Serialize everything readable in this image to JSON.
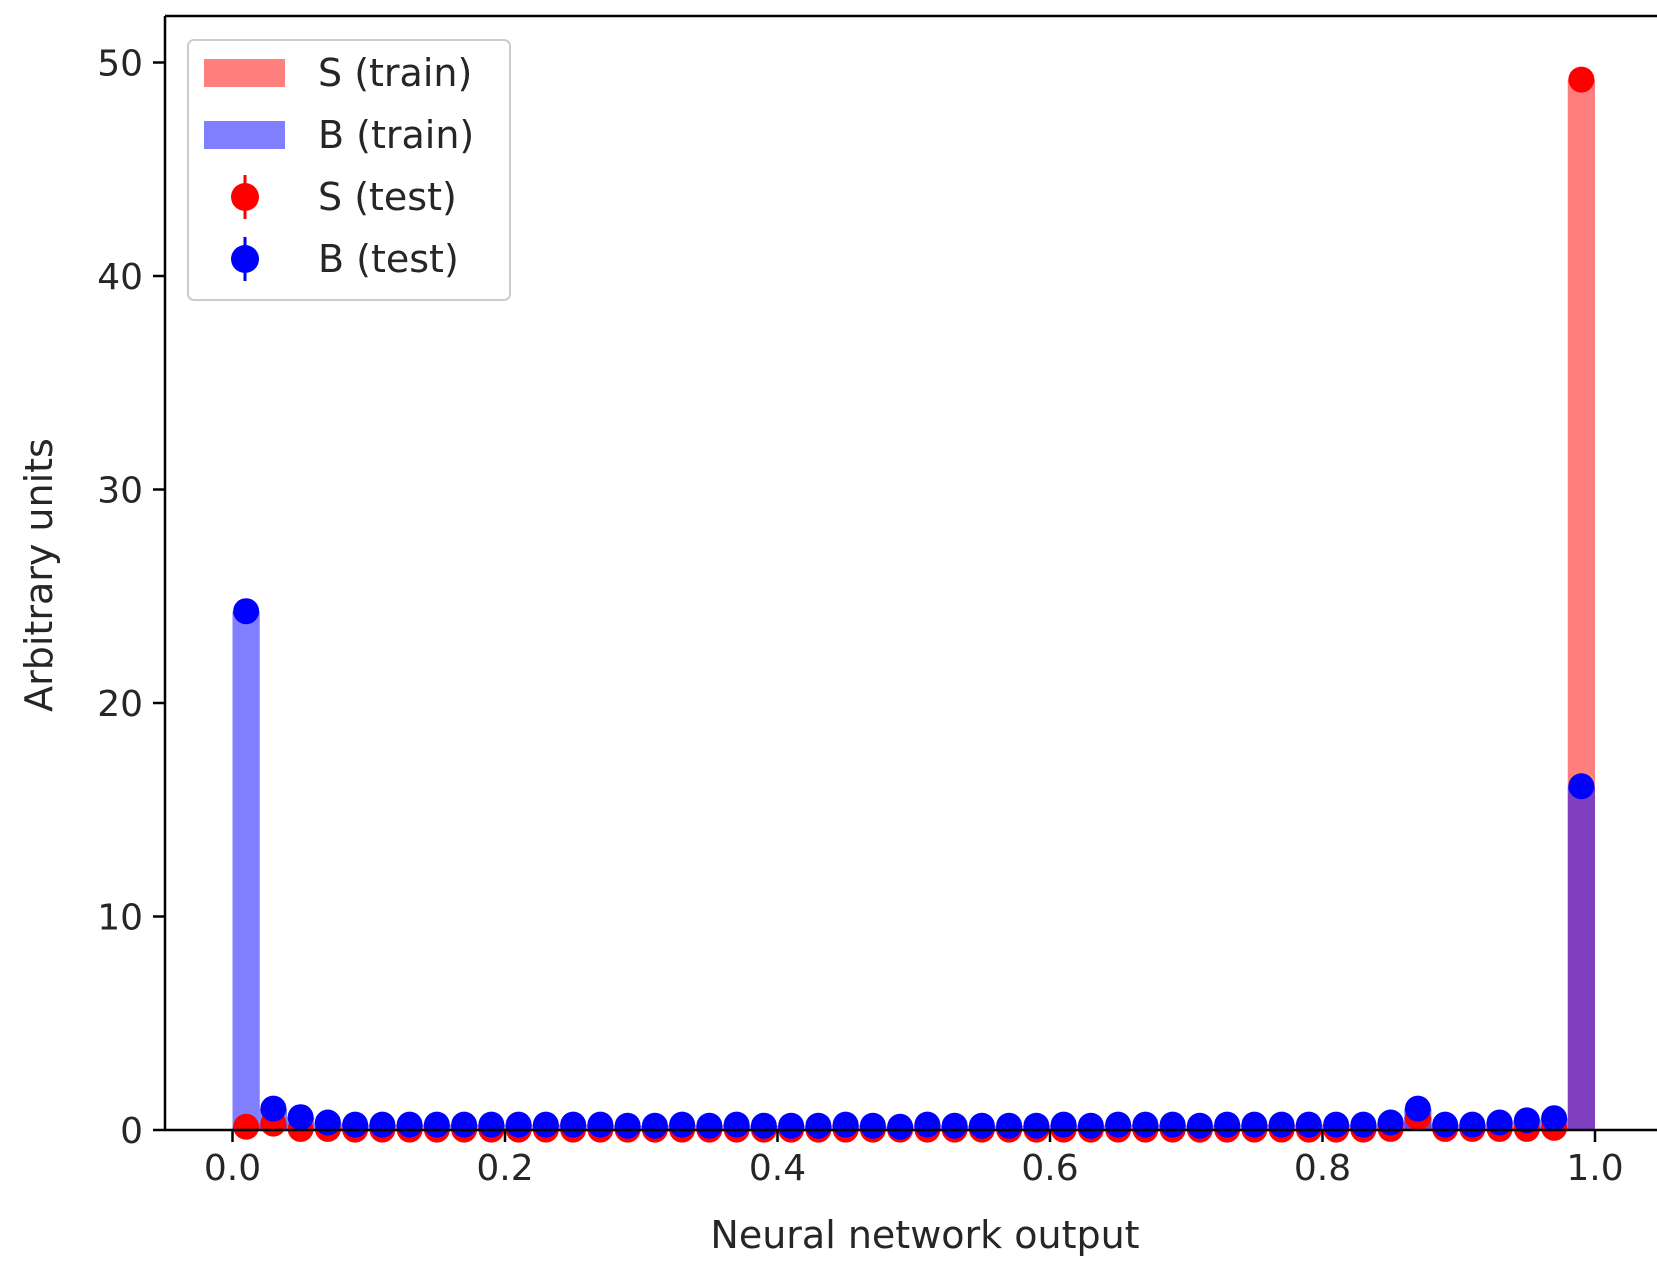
{
  "chart_data": {
    "type": "bar",
    "xlabel": "Neural network output",
    "ylabel": "Arbitrary units",
    "xlim": [
      -0.05,
      1.05
    ],
    "ylim": [
      0,
      52
    ],
    "grid": false,
    "legend_position": "top-left",
    "x_ticks": [
      0.0,
      0.2,
      0.4,
      0.6,
      0.8,
      1.0
    ],
    "x_tick_labels": [
      "0.0",
      "0.2",
      "0.4",
      "0.6",
      "0.8",
      "1.0"
    ],
    "y_ticks": [
      0,
      10,
      20,
      30,
      40,
      50
    ],
    "y_tick_labels": [
      "0",
      "10",
      "20",
      "30",
      "40",
      "50"
    ],
    "bin_width": 0.02,
    "bin_centers": [
      0.01,
      0.03,
      0.05,
      0.07,
      0.09,
      0.11,
      0.13,
      0.15,
      0.17,
      0.19,
      0.21,
      0.23,
      0.25,
      0.27,
      0.29,
      0.31,
      0.33,
      0.35,
      0.37,
      0.39,
      0.41,
      0.43,
      0.45,
      0.47,
      0.49,
      0.51,
      0.53,
      0.55,
      0.57,
      0.59,
      0.61,
      0.63,
      0.65,
      0.67,
      0.69,
      0.71,
      0.73,
      0.75,
      0.77,
      0.79,
      0.81,
      0.83,
      0.85,
      0.87,
      0.89,
      0.91,
      0.93,
      0.95,
      0.97,
      0.99
    ],
    "series": [
      {
        "name": "S (train)",
        "kind": "hist",
        "color": "#ff0000",
        "opacity": 0.5,
        "values": [
          0.15,
          0.3,
          0.05,
          0.05,
          0.02,
          0.02,
          0.02,
          0.02,
          0.02,
          0.02,
          0.02,
          0.02,
          0.02,
          0.02,
          0.02,
          0.02,
          0.02,
          0.02,
          0.02,
          0.02,
          0.02,
          0.02,
          0.02,
          0.02,
          0.02,
          0.02,
          0.02,
          0.02,
          0.02,
          0.02,
          0.02,
          0.02,
          0.02,
          0.02,
          0.02,
          0.02,
          0.02,
          0.02,
          0.02,
          0.02,
          0.02,
          0.02,
          0.05,
          0.6,
          0.05,
          0.05,
          0.05,
          0.05,
          0.1,
          49.2
        ]
      },
      {
        "name": "B (train)",
        "kind": "hist",
        "color": "#0000ff",
        "opacity": 0.5,
        "values": [
          24.3,
          1.0,
          0.6,
          0.35,
          0.25,
          0.25,
          0.25,
          0.25,
          0.25,
          0.25,
          0.25,
          0.25,
          0.25,
          0.25,
          0.2,
          0.2,
          0.25,
          0.2,
          0.25,
          0.2,
          0.2,
          0.2,
          0.25,
          0.2,
          0.15,
          0.25,
          0.2,
          0.2,
          0.2,
          0.2,
          0.25,
          0.2,
          0.25,
          0.25,
          0.25,
          0.2,
          0.25,
          0.25,
          0.25,
          0.25,
          0.25,
          0.25,
          0.35,
          1.0,
          0.25,
          0.25,
          0.35,
          0.45,
          0.55,
          16.1
        ]
      },
      {
        "name": "S (test)",
        "kind": "points",
        "color": "#ff0000",
        "values": [
          0.15,
          0.3,
          0.05,
          0.05,
          0.02,
          0.02,
          0.02,
          0.02,
          0.02,
          0.02,
          0.02,
          0.02,
          0.02,
          0.02,
          0.02,
          0.02,
          0.02,
          0.02,
          0.02,
          0.02,
          0.02,
          0.02,
          0.02,
          0.02,
          0.02,
          0.02,
          0.02,
          0.02,
          0.02,
          0.02,
          0.02,
          0.02,
          0.02,
          0.02,
          0.02,
          0.02,
          0.02,
          0.02,
          0.02,
          0.02,
          0.02,
          0.02,
          0.05,
          0.6,
          0.05,
          0.05,
          0.05,
          0.05,
          0.1,
          49.2
        ]
      },
      {
        "name": "B (test)",
        "kind": "points",
        "color": "#0000ff",
        "values": [
          24.3,
          1.0,
          0.6,
          0.35,
          0.25,
          0.25,
          0.25,
          0.25,
          0.25,
          0.25,
          0.25,
          0.25,
          0.25,
          0.25,
          0.2,
          0.2,
          0.25,
          0.2,
          0.25,
          0.2,
          0.2,
          0.2,
          0.25,
          0.2,
          0.15,
          0.25,
          0.2,
          0.2,
          0.2,
          0.2,
          0.25,
          0.2,
          0.25,
          0.25,
          0.25,
          0.2,
          0.25,
          0.25,
          0.25,
          0.25,
          0.25,
          0.25,
          0.35,
          1.0,
          0.25,
          0.25,
          0.35,
          0.45,
          0.55,
          16.1
        ]
      }
    ],
    "legend": [
      {
        "label": "S (train)",
        "marker": "patch",
        "color": "#ff0000",
        "opacity": 0.5
      },
      {
        "label": "B (train)",
        "marker": "patch",
        "color": "#0000ff",
        "opacity": 0.5
      },
      {
        "label": "S (test)",
        "marker": "errorbar-point",
        "color": "#ff0000"
      },
      {
        "label": "B (test)",
        "marker": "errorbar-point",
        "color": "#0000ff"
      }
    ]
  }
}
